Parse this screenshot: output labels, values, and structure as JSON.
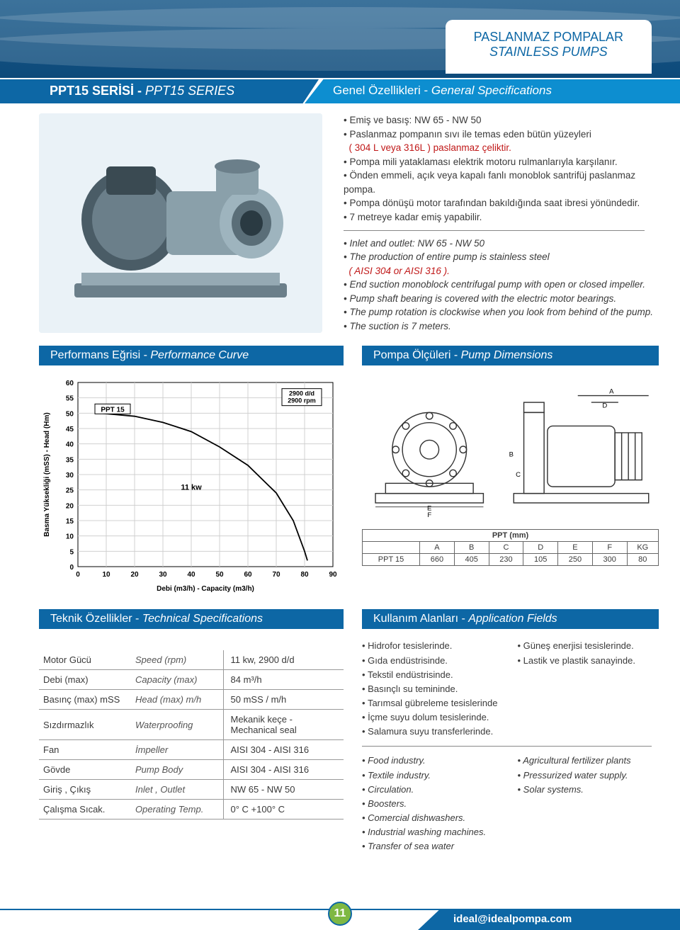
{
  "header": {
    "line1": "PASLANMAZ POMPALAR",
    "line2": "STAINLESS PUMPS"
  },
  "series_bar": {
    "left_tr": "PPT15 SERİSİ - ",
    "left_en": "PPT15 SERIES",
    "right_tr": "Genel Özellikleri - ",
    "right_en": "General Specifications"
  },
  "specs_tr": [
    "Emiş ve basış: NW 65 - NW 50",
    "Paslanmaz pompanın sıvı ile temas eden bütün yüzeyleri",
    "( 304 L veya 316L ) paslanmaz çeliktir.",
    "Pompa mili yataklaması elektrik motoru rulmanlarıyla karşılanır.",
    "Önden emmeli, açık veya kapalı fanlı monoblok santrifüj paslanmaz pompa.",
    "Pompa dönüşü motor tarafından bakıldığında saat ibresi yönündedir.",
    "7 metreye kadar emiş yapabilir."
  ],
  "specs_en": [
    "Inlet and outlet: NW 65 - NW 50",
    "The production of entire pump is stainless steel",
    "( AISI 304  or AISI 316 ).",
    "End suction monoblock centrifugal pump with open or closed impeller.",
    "Pump shaft bearing is covered with the electric motor bearings.",
    "The pump rotation is clockwise when you look from behind of the pump.",
    "The suction is 7 meters."
  ],
  "sections": {
    "perf": {
      "tr": "Performans Eğrisi  -  ",
      "en": "Performance Curve"
    },
    "dims": {
      "tr": "Pompa Ölçüleri  -  ",
      "en": "Pump Dimensions"
    },
    "tech": {
      "tr": "Teknik Özellikler  -  ",
      "en": "Technical Specifications"
    },
    "app": {
      "tr": "Kullanım Alanları  -  ",
      "en": "Application Fields"
    }
  },
  "chart": {
    "type": "line",
    "model_label": "PPT 15",
    "rpm_label1": "2900 d/d",
    "rpm_label2": "2900 rpm",
    "power_label": "11  kw",
    "xlabel": "Debi (m3/h) - Capacity (m3/h)",
    "ylabel": "Basma Yüksekliği (mSS) - Head (Hm)",
    "xlim": [
      0,
      90
    ],
    "ylim": [
      0,
      60
    ],
    "xtick_step": 10,
    "ytick_step": 5,
    "curve": [
      [
        8,
        50
      ],
      [
        20,
        49
      ],
      [
        30,
        47
      ],
      [
        40,
        44
      ],
      [
        50,
        39
      ],
      [
        60,
        33
      ],
      [
        70,
        24
      ],
      [
        76,
        15
      ],
      [
        80,
        5
      ],
      [
        81,
        2
      ]
    ],
    "grid_color": "#d0d0d0",
    "line_color": "#000000",
    "background_color": "#ffffff",
    "label_fontsize": 10
  },
  "ppt_table": {
    "header_label": "PPT (mm)",
    "columns": [
      "",
      "A",
      "B",
      "C",
      "D",
      "E",
      "F",
      "KG"
    ],
    "rows": [
      [
        "PPT 15",
        "660",
        "405",
        "230",
        "105",
        "250",
        "300",
        "80"
      ]
    ]
  },
  "tech_table": {
    "rows": [
      {
        "tr": "Motor Gücü",
        "en": "Speed (rpm)",
        "val": "11 kw, 2900 d/d"
      },
      {
        "tr": "Debi (max)",
        "en": "Capacity (max)",
        "val": "84 m³/h"
      },
      {
        "tr": "Basınç (max) mSS",
        "en": "Head (max) m/h",
        "val": "50 mSS / m/h"
      },
      {
        "tr": "Sızdırmazlık",
        "en": "Waterproofing",
        "val": "Mekanik keçe - Mechanical seal"
      },
      {
        "tr": "Fan",
        "en": "İmpeller",
        "val": "AISI 304 - AISI 316"
      },
      {
        "tr": "Gövde",
        "en": "Pump Body",
        "val": "AISI 304 - AISI 316"
      },
      {
        "tr": "Giriş , Çıkış",
        "en": "Inlet , Outlet",
        "val": "NW 65 - NW 50"
      },
      {
        "tr": "Çalışma Sıcak.",
        "en": "Operating Temp.",
        "val": "0° C +100° C"
      }
    ]
  },
  "apps_tr": {
    "col1": [
      "Hidrofor tesislerinde.",
      "Gıda endüstrisinde.",
      "Tekstil endüstrisinde.",
      "Basınçlı su temininde.",
      "Tarımsal gübreleme tesislerinde",
      "İçme suyu dolum tesislerinde.",
      "Salamura suyu transferlerinde."
    ],
    "col2": [
      "Güneş enerjisi tesislerinde.",
      "Lastik ve plastik sanayinde."
    ]
  },
  "apps_en": {
    "col1": [
      "Food industry.",
      "Textile industry.",
      "Circulation.",
      "Boosters.",
      "Comercial dishwashers.",
      "Industrial washing machines.",
      "Transfer of sea water"
    ],
    "col2": [
      "Agricultural fertilizer plants",
      "Pressurized water supply.",
      "Solar systems."
    ]
  },
  "footer": {
    "page": "11",
    "email": "ideal@idealpompa.com"
  },
  "colors": {
    "brand_blue": "#0d67a5",
    "light_blue": "#0d8ed0",
    "green": "#7fb843",
    "red": "#c01818"
  }
}
